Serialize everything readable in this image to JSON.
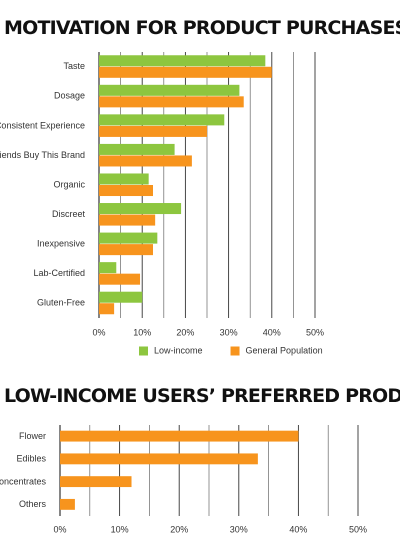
{
  "chart_data": [
    {
      "type": "bar",
      "orientation": "horizontal",
      "title": "MOTIVATION FOR PRODUCT PURCHASES",
      "categories": [
        "Taste",
        "Dosage",
        "Consistent Experience",
        "Friends Buy This Brand",
        "Organic",
        "Discreet",
        "Inexpensive",
        "Lab-Certified",
        "Gluten-Free"
      ],
      "series": [
        {
          "name": "Low-income",
          "color": "#8dc63f",
          "values": [
            38.5,
            32.5,
            29,
            17.5,
            11.5,
            19,
            13.5,
            4,
            10
          ]
        },
        {
          "name": "General Population",
          "color": "#f7941d",
          "values": [
            40,
            33.5,
            25,
            21.5,
            12.5,
            13,
            12.5,
            9.5,
            3.5
          ]
        }
      ],
      "xlim": [
        0,
        50
      ],
      "xticks": [
        {
          "value": 0,
          "label": "0%"
        },
        {
          "value": 10,
          "label": "10%"
        },
        {
          "value": 20,
          "label": "20%"
        },
        {
          "value": 30,
          "label": "30%"
        },
        {
          "value": 40,
          "label": "40%"
        },
        {
          "value": 50,
          "label": "50%"
        }
      ],
      "minor_xticks": [
        5,
        15,
        25,
        35,
        45
      ],
      "grid": true,
      "legend": "bottom"
    },
    {
      "type": "bar",
      "orientation": "horizontal",
      "title": "LOW-INCOME USERS’ PREFERRED PRODUCTS",
      "categories": [
        "Flower",
        "Edibles",
        "Concentrates",
        "Others"
      ],
      "values": [
        40,
        33.2,
        12,
        2.5
      ],
      "color": "#f7941d",
      "xlim": [
        0,
        50
      ],
      "xticks": [
        {
          "value": 0,
          "label": "0%"
        },
        {
          "value": 10,
          "label": "10%"
        },
        {
          "value": 20,
          "label": "20%"
        },
        {
          "value": 30,
          "label": "30%"
        },
        {
          "value": 40,
          "label": "40%"
        },
        {
          "value": 50,
          "label": "50%"
        }
      ],
      "minor_xticks": [
        5,
        15,
        25,
        35,
        45
      ],
      "grid": true
    }
  ]
}
